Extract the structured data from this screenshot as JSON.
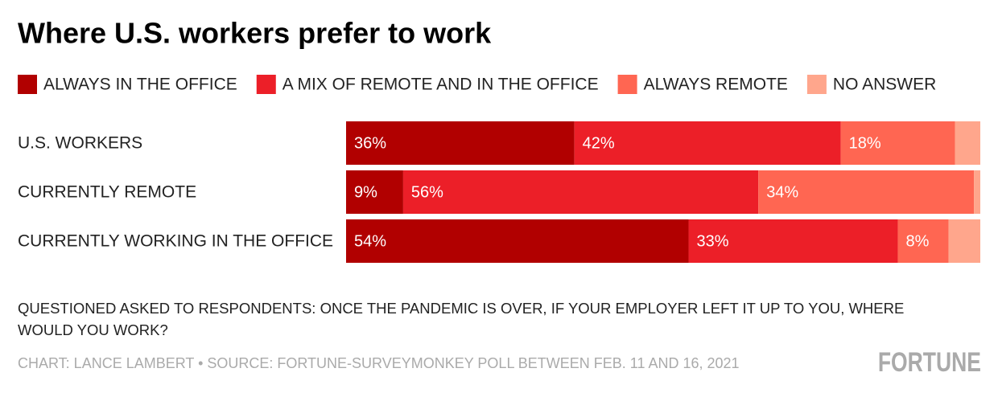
{
  "chart_data": {
    "type": "bar",
    "orientation": "horizontal",
    "stacked": true,
    "title": "Where U.S. workers prefer to work",
    "categories": [
      "U.S. WORKERS",
      "CURRENTLY REMOTE",
      "CURRENTLY WORKING IN THE OFFICE"
    ],
    "series": [
      {
        "name": "ALWAYS IN THE OFFICE",
        "color": "#b10000",
        "values": [
          36,
          9,
          54
        ],
        "value_labels": [
          "36%",
          "9%",
          "54%"
        ]
      },
      {
        "name": "A MIX OF REMOTE AND IN THE OFFICE",
        "color": "#ec1f28",
        "values": [
          42,
          56,
          33
        ],
        "value_labels": [
          "42%",
          "56%",
          "33%"
        ]
      },
      {
        "name": "ALWAYS REMOTE",
        "color": "#ff6652",
        "values": [
          18,
          34,
          8
        ],
        "value_labels": [
          "18%",
          "34%",
          "8%"
        ]
      },
      {
        "name": "NO ANSWER",
        "color": "#ffa68c",
        "values": [
          4,
          1,
          5
        ]
      }
    ],
    "legend": "top",
    "note": "QUESTIONED ASKED TO RESPONDENTS: ONCE THE PANDEMIC IS OVER, IF YOUR EMPLOYER LEFT IT UP TO YOU, WHERE WOULD YOU WORK?",
    "source": "CHART: LANCE LAMBERT • SOURCE: FORTUNE-SURVEYMONKEY POLL BETWEEN FEB. 11 AND 16, 2021",
    "logo": "FORTUNE"
  }
}
